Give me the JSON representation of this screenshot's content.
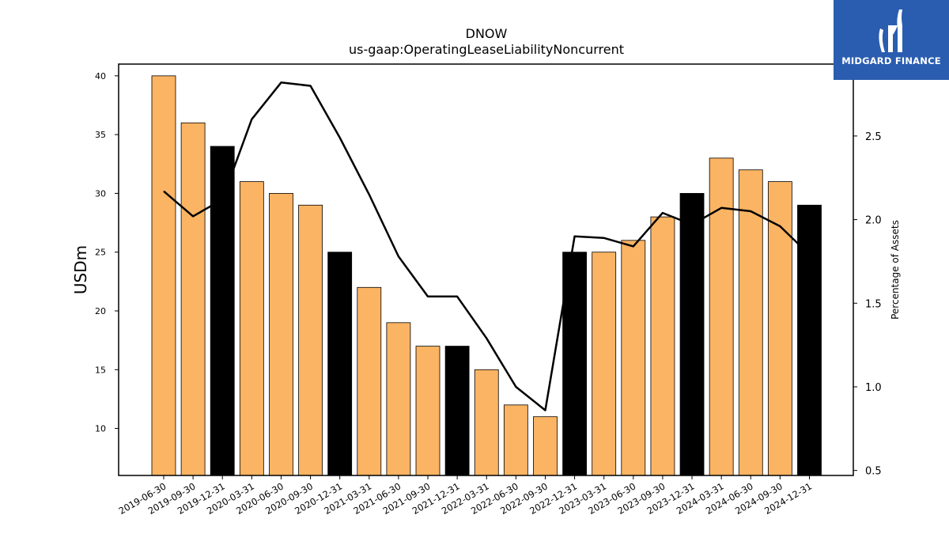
{
  "chart_data": {
    "type": "bar",
    "title": "DNOW",
    "subtitle": "us-gaap:OperatingLeaseLiabilityNoncurrent",
    "ylabel": "USDm",
    "y2label": "Percentage of Assets",
    "ylim": [
      6,
      41
    ],
    "y2lim": [
      0.47,
      2.93
    ],
    "yticks": [
      10,
      15,
      20,
      25,
      30,
      35,
      40
    ],
    "y2ticks": [
      0.5,
      1.0,
      1.5,
      2.0,
      2.5
    ],
    "categories": [
      "2019-06-30",
      "2019-09-30",
      "2019-12-31",
      "2020-03-31",
      "2020-06-30",
      "2020-09-30",
      "2020-12-31",
      "2021-03-31",
      "2021-06-30",
      "2021-09-30",
      "2021-12-31",
      "2022-03-31",
      "2022-06-30",
      "2022-09-30",
      "2022-12-31",
      "2023-03-31",
      "2023-06-30",
      "2023-09-30",
      "2023-12-31",
      "2024-03-31",
      "2024-06-30",
      "2024-09-30",
      "2024-12-31"
    ],
    "values": [
      40,
      36,
      34,
      31,
      30,
      29,
      25,
      22,
      19,
      17,
      17,
      15,
      12,
      11,
      25,
      25,
      26,
      28,
      30,
      33,
      32,
      31,
      29
    ],
    "year_end": [
      false,
      false,
      true,
      false,
      false,
      false,
      true,
      false,
      false,
      false,
      true,
      false,
      false,
      false,
      true,
      false,
      false,
      false,
      true,
      false,
      false,
      false,
      true
    ],
    "line_values": [
      2.17,
      2.02,
      2.12,
      2.6,
      2.82,
      2.8,
      2.49,
      2.15,
      1.78,
      1.54,
      1.54,
      1.29,
      1.0,
      0.86,
      1.9,
      1.89,
      1.84,
      2.04,
      1.97,
      2.07,
      2.05,
      1.96,
      1.79
    ],
    "colors": {
      "bar": "#fbb463",
      "bar_year_end": "#000000",
      "line": "#000000"
    },
    "grid": false
  },
  "brand": {
    "name": "MIDGARD FINANCE",
    "icon": "midgard-logo-icon",
    "background": "#2a5db0"
  }
}
